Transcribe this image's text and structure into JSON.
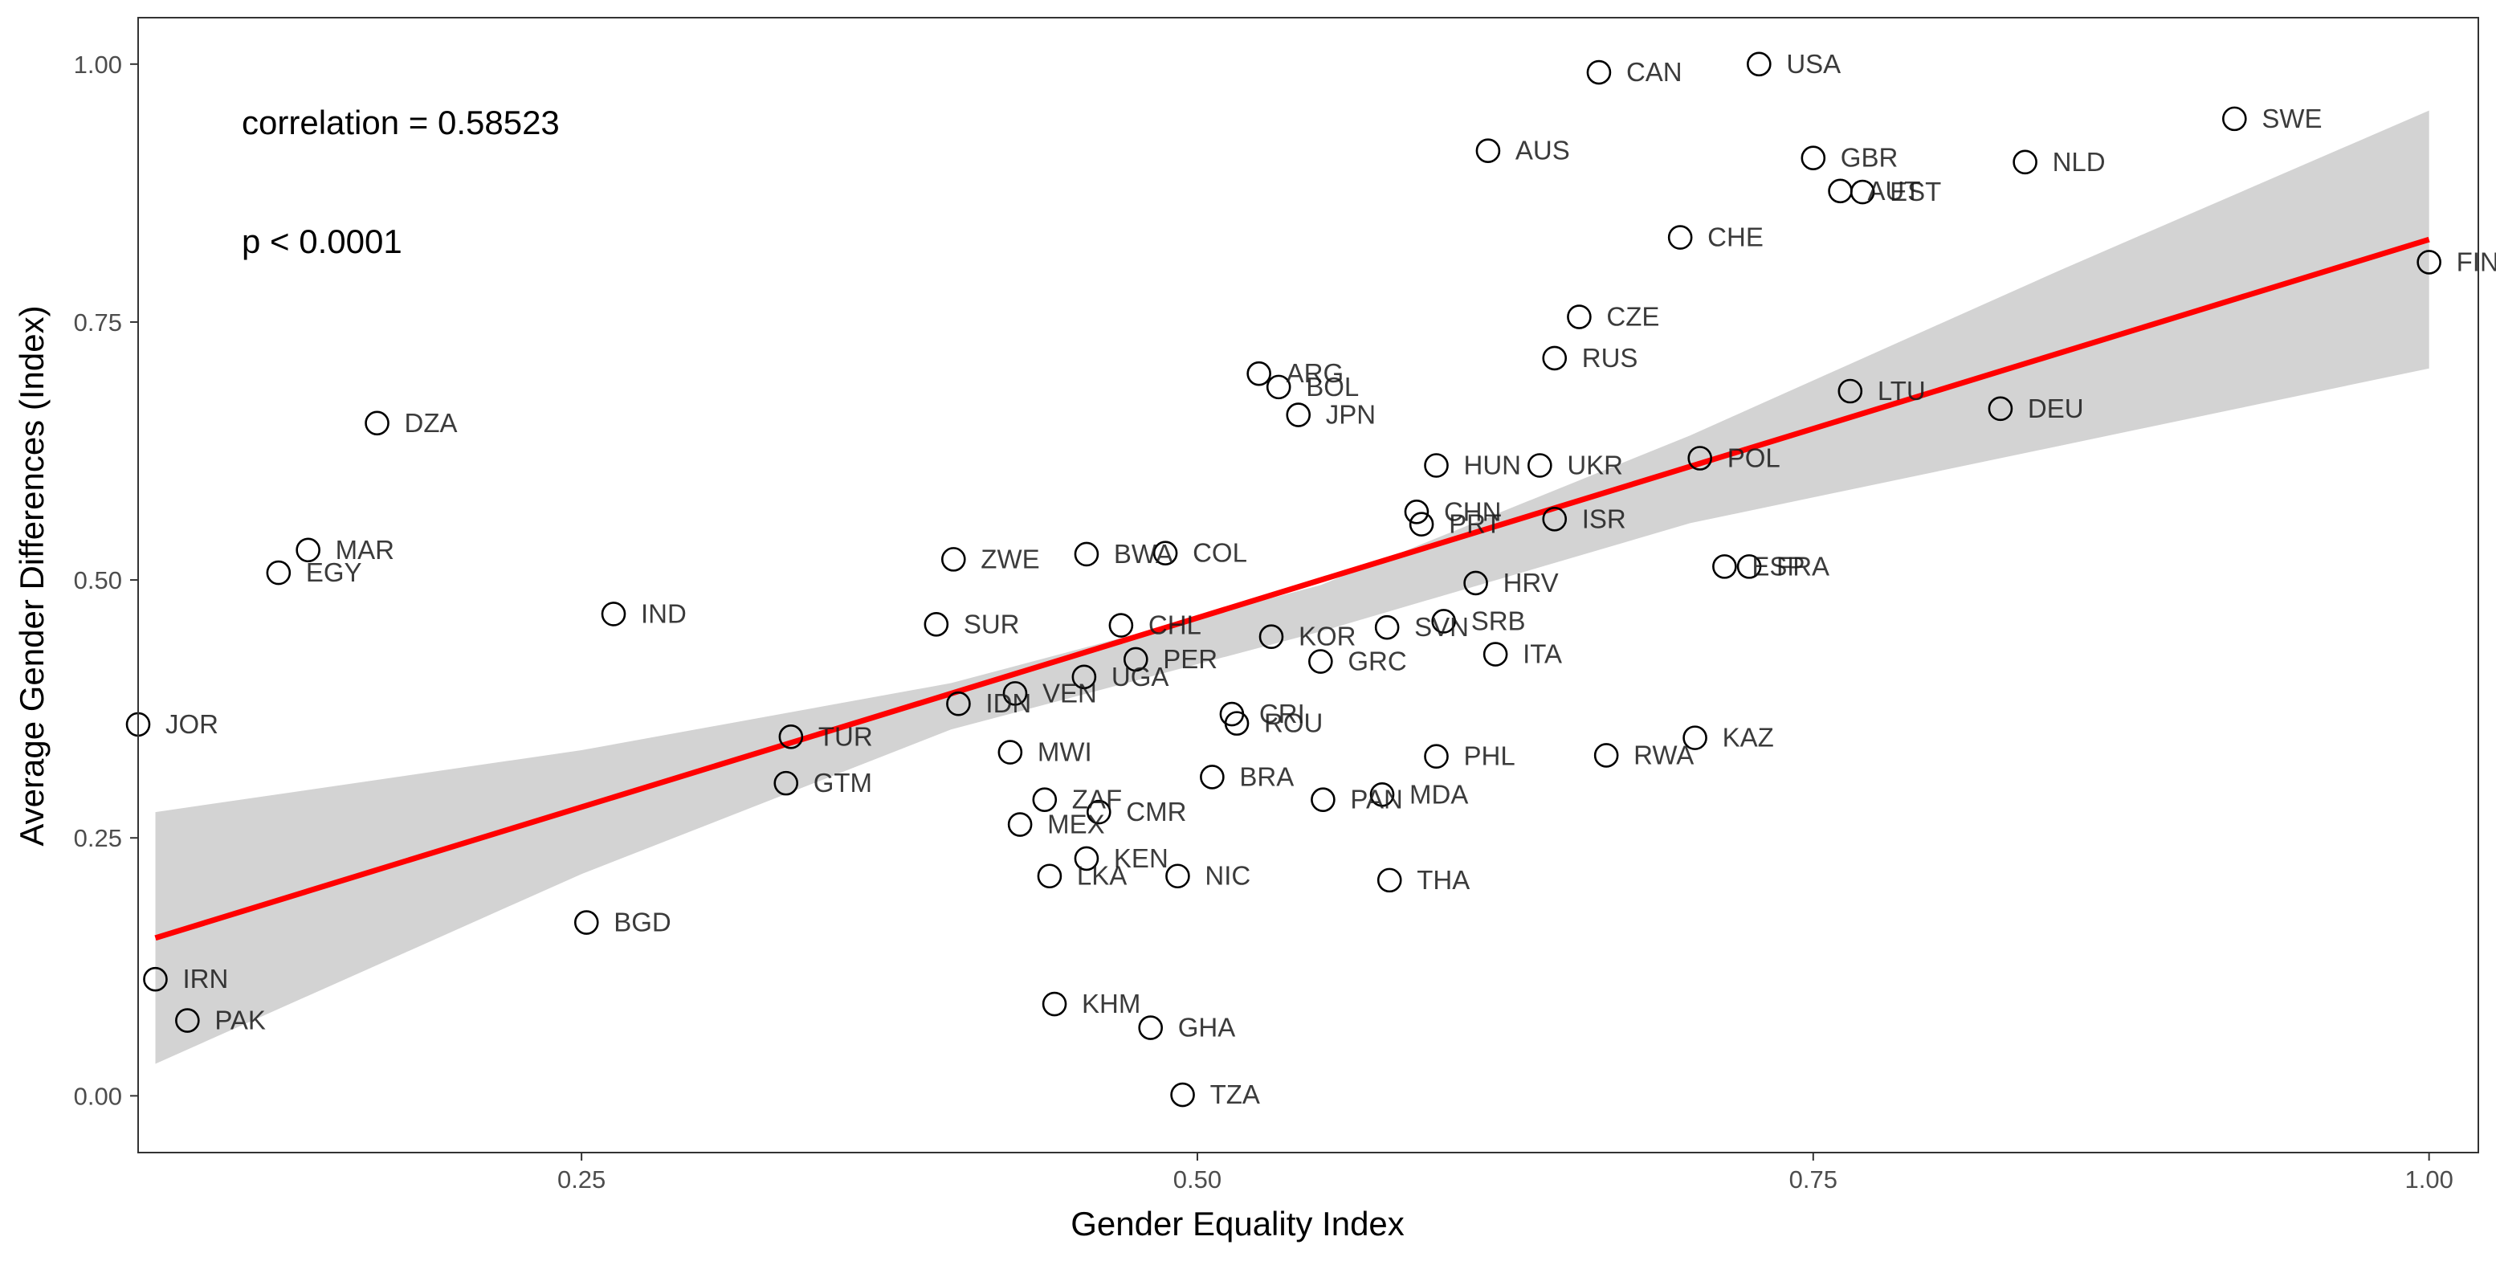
{
  "chart_data": {
    "type": "scatter",
    "xlabel": "Gender Equality Index",
    "ylabel": "Average Gender Differences (Index)",
    "xlim": [
      0.07,
      1.02
    ],
    "ylim": [
      -0.055,
      1.045
    ],
    "x_ticks": [
      0.25,
      0.5,
      0.75,
      1.0
    ],
    "x_tick_labels": [
      "0.25",
      "0.50",
      "0.75",
      "1.00"
    ],
    "y_ticks": [
      0.0,
      0.25,
      0.5,
      0.75,
      1.0
    ],
    "y_tick_labels": [
      "0.00",
      "0.25",
      "0.50",
      "0.75",
      "1.00"
    ],
    "grid": false,
    "annotations": [
      "correlation = 0.58523",
      "p < 0.0001"
    ],
    "trend_line": {
      "color": "#ff0000",
      "x": [
        0.077,
        1.0
      ],
      "y": [
        0.153,
        0.83
      ]
    },
    "confidence_band": {
      "color": "#d3d3d3",
      "x": [
        0.077,
        0.25,
        0.4,
        0.55,
        0.7,
        0.85,
        1.0
      ],
      "upper": [
        0.275,
        0.335,
        0.4,
        0.495,
        0.64,
        0.8,
        0.955
      ],
      "lower": [
        0.031,
        0.215,
        0.355,
        0.45,
        0.555,
        0.63,
        0.705
      ]
    },
    "points": [
      {
        "label": "CAN",
        "x": 0.663,
        "y": 0.992
      },
      {
        "label": "USA",
        "x": 0.728,
        "y": 1.0
      },
      {
        "label": "SWE",
        "x": 0.921,
        "y": 0.947
      },
      {
        "label": "AUS",
        "x": 0.618,
        "y": 0.916
      },
      {
        "label": "GBR",
        "x": 0.75,
        "y": 0.909
      },
      {
        "label": "NLD",
        "x": 0.836,
        "y": 0.905
      },
      {
        "label": "AUT",
        "x": 0.761,
        "y": 0.877
      },
      {
        "label": "EST",
        "x": 0.77,
        "y": 0.876
      },
      {
        "label": "CHE",
        "x": 0.696,
        "y": 0.832
      },
      {
        "label": "FIN",
        "x": 1.0,
        "y": 0.808
      },
      {
        "label": "CZE",
        "x": 0.655,
        "y": 0.755
      },
      {
        "label": "RUS",
        "x": 0.645,
        "y": 0.715
      },
      {
        "label": "ARG",
        "x": 0.525,
        "y": 0.7
      },
      {
        "label": "BOL",
        "x": 0.533,
        "y": 0.687
      },
      {
        "label": "LTU",
        "x": 0.765,
        "y": 0.683
      },
      {
        "label": "DEU",
        "x": 0.826,
        "y": 0.666
      },
      {
        "label": "JPN",
        "x": 0.541,
        "y": 0.66
      },
      {
        "label": "DZA",
        "x": 0.167,
        "y": 0.652
      },
      {
        "label": "POL",
        "x": 0.704,
        "y": 0.618
      },
      {
        "label": "HUN",
        "x": 0.597,
        "y": 0.611
      },
      {
        "label": "UKR",
        "x": 0.639,
        "y": 0.611
      },
      {
        "label": "CHN",
        "x": 0.589,
        "y": 0.566
      },
      {
        "label": "ISR",
        "x": 0.645,
        "y": 0.559
      },
      {
        "label": "PRT",
        "x": 0.591,
        "y": 0.554
      },
      {
        "label": "MAR",
        "x": 0.139,
        "y": 0.529
      },
      {
        "label": "BWA",
        "x": 0.455,
        "y": 0.525
      },
      {
        "label": "COL",
        "x": 0.487,
        "y": 0.526
      },
      {
        "label": "ZWE",
        "x": 0.401,
        "y": 0.52
      },
      {
        "label": "ESP",
        "x": 0.714,
        "y": 0.513
      },
      {
        "label": "FRA",
        "x": 0.724,
        "y": 0.513
      },
      {
        "label": "EGY",
        "x": 0.127,
        "y": 0.507
      },
      {
        "label": "HRV",
        "x": 0.613,
        "y": 0.497
      },
      {
        "label": "IND",
        "x": 0.263,
        "y": 0.467
      },
      {
        "label": "SRB",
        "x": 0.6,
        "y": 0.46
      },
      {
        "label": "SUR",
        "x": 0.394,
        "y": 0.457
      },
      {
        "label": "CHL",
        "x": 0.469,
        "y": 0.456
      },
      {
        "label": "SVN",
        "x": 0.577,
        "y": 0.454
      },
      {
        "label": "KOR",
        "x": 0.53,
        "y": 0.445
      },
      {
        "label": "ITA",
        "x": 0.621,
        "y": 0.428
      },
      {
        "label": "PER",
        "x": 0.475,
        "y": 0.423
      },
      {
        "label": "GRC",
        "x": 0.55,
        "y": 0.421
      },
      {
        "label": "UGA",
        "x": 0.454,
        "y": 0.406
      },
      {
        "label": "VEN",
        "x": 0.426,
        "y": 0.39
      },
      {
        "label": "IDN",
        "x": 0.403,
        "y": 0.38
      },
      {
        "label": "CRI",
        "x": 0.514,
        "y": 0.37
      },
      {
        "label": "ROU",
        "x": 0.516,
        "y": 0.361
      },
      {
        "label": "JOR",
        "x": 0.07,
        "y": 0.36
      },
      {
        "label": "TUR",
        "x": 0.335,
        "y": 0.348
      },
      {
        "label": "KAZ",
        "x": 0.702,
        "y": 0.347
      },
      {
        "label": "MWI",
        "x": 0.424,
        "y": 0.333
      },
      {
        "label": "PHL",
        "x": 0.597,
        "y": 0.329
      },
      {
        "label": "RWA",
        "x": 0.666,
        "y": 0.33
      },
      {
        "label": "BRA",
        "x": 0.506,
        "y": 0.309
      },
      {
        "label": "GTM",
        "x": 0.333,
        "y": 0.303
      },
      {
        "label": "MDA",
        "x": 0.575,
        "y": 0.292
      },
      {
        "label": "PAN",
        "x": 0.551,
        "y": 0.287
      },
      {
        "label": "ZAF",
        "x": 0.438,
        "y": 0.287
      },
      {
        "label": "CMR",
        "x": 0.46,
        "y": 0.275
      },
      {
        "label": "MEX",
        "x": 0.428,
        "y": 0.263
      },
      {
        "label": "KEN",
        "x": 0.455,
        "y": 0.23
      },
      {
        "label": "LKA",
        "x": 0.44,
        "y": 0.213
      },
      {
        "label": "NIC",
        "x": 0.492,
        "y": 0.213
      },
      {
        "label": "THA",
        "x": 0.578,
        "y": 0.209
      },
      {
        "label": "BGD",
        "x": 0.252,
        "y": 0.168
      },
      {
        "label": "IRN",
        "x": 0.077,
        "y": 0.113
      },
      {
        "label": "KHM",
        "x": 0.442,
        "y": 0.089
      },
      {
        "label": "PAK",
        "x": 0.09,
        "y": 0.073
      },
      {
        "label": "GHA",
        "x": 0.481,
        "y": 0.066
      },
      {
        "label": "TZA",
        "x": 0.494,
        "y": 0.001
      }
    ]
  }
}
